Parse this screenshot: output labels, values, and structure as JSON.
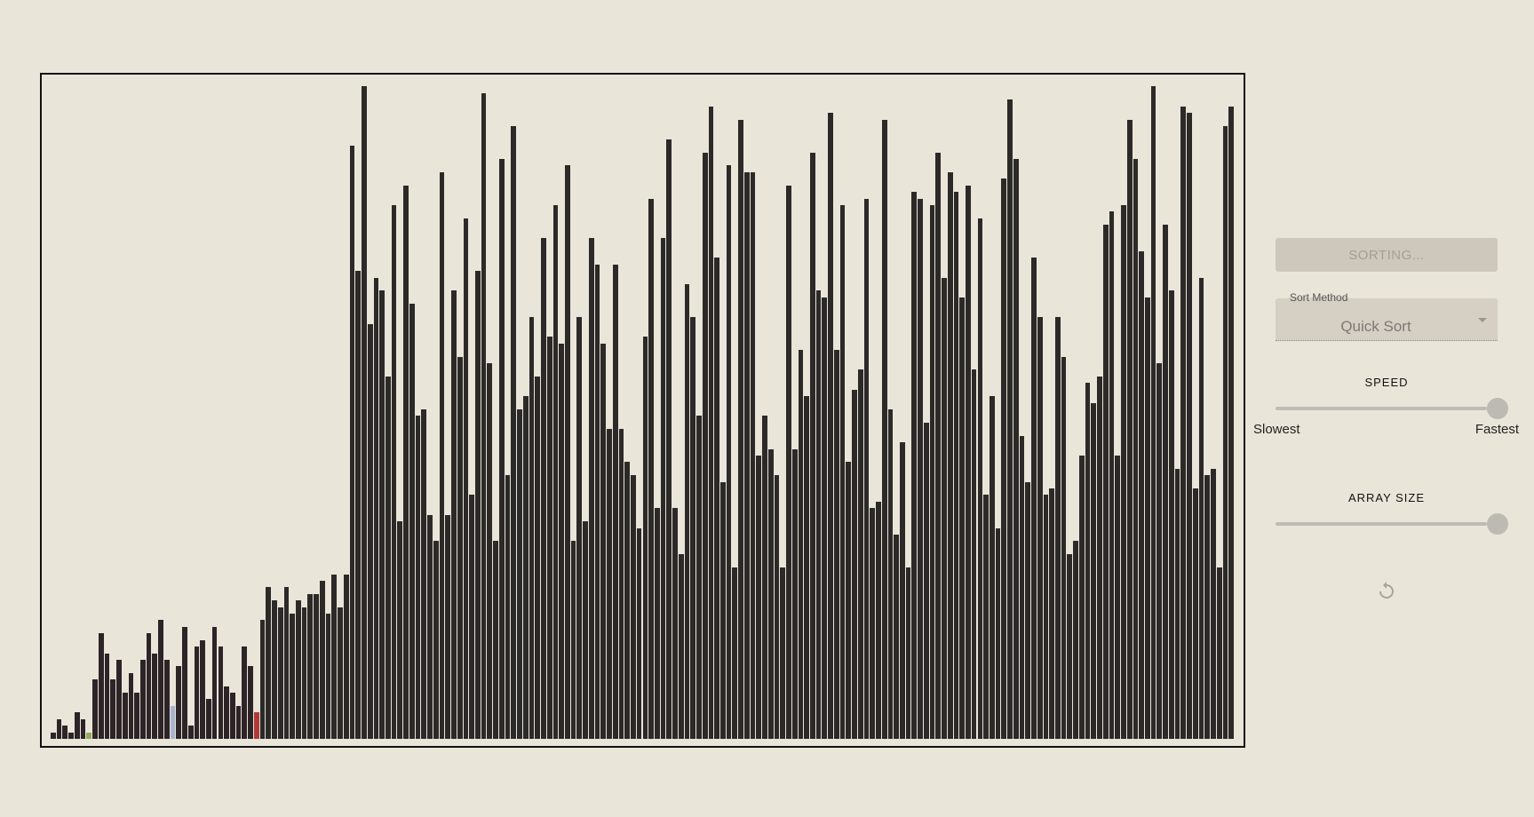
{
  "controls": {
    "sort_button_label": "SORTING...",
    "sort_method_label": "Sort Method",
    "sort_method_value": "Quick Sort",
    "speed_title": "SPEED",
    "speed_min_label": "Slowest",
    "speed_max_label": "Fastest",
    "speed_value_fraction": 1.0,
    "array_size_title": "ARRAY SIZE",
    "array_size_value_fraction": 1.0,
    "reset_icon": "refresh-icon"
  },
  "visualizer": {
    "max_value": 100,
    "colors": {
      "default": "#2b2a28",
      "sorted_group": "#2d2428",
      "pivot": "#b03a3a",
      "compare": "#a9b4d2",
      "low_marker": "#8fae5b"
    },
    "bars": [
      {
        "v": 1
      },
      {
        "v": 3
      },
      {
        "v": 2
      },
      {
        "v": 1
      },
      {
        "v": 4
      },
      {
        "v": 3
      },
      {
        "v": 1,
        "state": "low_marker"
      },
      {
        "v": 9
      },
      {
        "v": 16
      },
      {
        "v": 13
      },
      {
        "v": 9
      },
      {
        "v": 12
      },
      {
        "v": 7
      },
      {
        "v": 10
      },
      {
        "v": 7
      },
      {
        "v": 12
      },
      {
        "v": 16
      },
      {
        "v": 13
      },
      {
        "v": 18
      },
      {
        "v": 12
      },
      {
        "v": 5,
        "state": "compare"
      },
      {
        "v": 11
      },
      {
        "v": 17
      },
      {
        "v": 2
      },
      {
        "v": 14
      },
      {
        "v": 15
      },
      {
        "v": 6
      },
      {
        "v": 17
      },
      {
        "v": 14
      },
      {
        "v": 8
      },
      {
        "v": 7
      },
      {
        "v": 5
      },
      {
        "v": 14
      },
      {
        "v": 11
      },
      {
        "v": 4,
        "state": "pivot"
      },
      {
        "v": 18
      },
      {
        "v": 23
      },
      {
        "v": 21
      },
      {
        "v": 20
      },
      {
        "v": 23
      },
      {
        "v": 19
      },
      {
        "v": 21
      },
      {
        "v": 20
      },
      {
        "v": 22
      },
      {
        "v": 22
      },
      {
        "v": 24
      },
      {
        "v": 19
      },
      {
        "v": 25
      },
      {
        "v": 20
      },
      {
        "v": 25
      },
      {
        "v": 90
      },
      {
        "v": 71
      },
      {
        "v": 99
      },
      {
        "v": 63
      },
      {
        "v": 70
      },
      {
        "v": 68
      },
      {
        "v": 55
      },
      {
        "v": 81
      },
      {
        "v": 33
      },
      {
        "v": 84
      },
      {
        "v": 66
      },
      {
        "v": 49
      },
      {
        "v": 50
      },
      {
        "v": 34
      },
      {
        "v": 30
      },
      {
        "v": 86
      },
      {
        "v": 34
      },
      {
        "v": 68
      },
      {
        "v": 58
      },
      {
        "v": 79
      },
      {
        "v": 37
      },
      {
        "v": 71
      },
      {
        "v": 98
      },
      {
        "v": 57
      },
      {
        "v": 30
      },
      {
        "v": 88
      },
      {
        "v": 40
      },
      {
        "v": 93
      },
      {
        "v": 50
      },
      {
        "v": 52
      },
      {
        "v": 64
      },
      {
        "v": 55
      },
      {
        "v": 76
      },
      {
        "v": 61
      },
      {
        "v": 81
      },
      {
        "v": 60
      },
      {
        "v": 87
      },
      {
        "v": 30
      },
      {
        "v": 64
      },
      {
        "v": 33
      },
      {
        "v": 76
      },
      {
        "v": 72
      },
      {
        "v": 60
      },
      {
        "v": 47
      },
      {
        "v": 72
      },
      {
        "v": 47
      },
      {
        "v": 42
      },
      {
        "v": 40
      },
      {
        "v": 32
      },
      {
        "v": 61
      },
      {
        "v": 82
      },
      {
        "v": 35
      },
      {
        "v": 76
      },
      {
        "v": 91
      },
      {
        "v": 35
      },
      {
        "v": 28
      },
      {
        "v": 69
      },
      {
        "v": 64
      },
      {
        "v": 49
      },
      {
        "v": 89
      },
      {
        "v": 96
      },
      {
        "v": 73
      },
      {
        "v": 39
      },
      {
        "v": 87
      },
      {
        "v": 26
      },
      {
        "v": 94
      },
      {
        "v": 86
      },
      {
        "v": 86
      },
      {
        "v": 43
      },
      {
        "v": 49
      },
      {
        "v": 44
      },
      {
        "v": 40
      },
      {
        "v": 26
      },
      {
        "v": 84
      },
      {
        "v": 44
      },
      {
        "v": 59
      },
      {
        "v": 52
      },
      {
        "v": 89
      },
      {
        "v": 68
      },
      {
        "v": 67
      },
      {
        "v": 95
      },
      {
        "v": 59
      },
      {
        "v": 81
      },
      {
        "v": 42
      },
      {
        "v": 53
      },
      {
        "v": 56
      },
      {
        "v": 82
      },
      {
        "v": 35
      },
      {
        "v": 36
      },
      {
        "v": 94
      },
      {
        "v": 50
      },
      {
        "v": 31
      },
      {
        "v": 45
      },
      {
        "v": 26
      },
      {
        "v": 83
      },
      {
        "v": 82
      },
      {
        "v": 48
      },
      {
        "v": 81
      },
      {
        "v": 89
      },
      {
        "v": 70
      },
      {
        "v": 86
      },
      {
        "v": 83
      },
      {
        "v": 67
      },
      {
        "v": 84
      },
      {
        "v": 56
      },
      {
        "v": 79
      },
      {
        "v": 37
      },
      {
        "v": 52
      },
      {
        "v": 32
      },
      {
        "v": 85
      },
      {
        "v": 97
      },
      {
        "v": 88
      },
      {
        "v": 46
      },
      {
        "v": 39
      },
      {
        "v": 73
      },
      {
        "v": 64
      },
      {
        "v": 37
      },
      {
        "v": 38
      },
      {
        "v": 64
      },
      {
        "v": 58
      },
      {
        "v": 28
      },
      {
        "v": 30
      },
      {
        "v": 43
      },
      {
        "v": 54
      },
      {
        "v": 51
      },
      {
        "v": 55
      },
      {
        "v": 78
      },
      {
        "v": 80
      },
      {
        "v": 43
      },
      {
        "v": 81
      },
      {
        "v": 94
      },
      {
        "v": 88
      },
      {
        "v": 74
      },
      {
        "v": 67
      },
      {
        "v": 99
      },
      {
        "v": 57
      },
      {
        "v": 78
      },
      {
        "v": 68
      },
      {
        "v": 41
      },
      {
        "v": 96
      },
      {
        "v": 95
      },
      {
        "v": 38
      },
      {
        "v": 70
      },
      {
        "v": 40
      },
      {
        "v": 41
      },
      {
        "v": 26
      },
      {
        "v": 93
      },
      {
        "v": 96
      }
    ]
  }
}
